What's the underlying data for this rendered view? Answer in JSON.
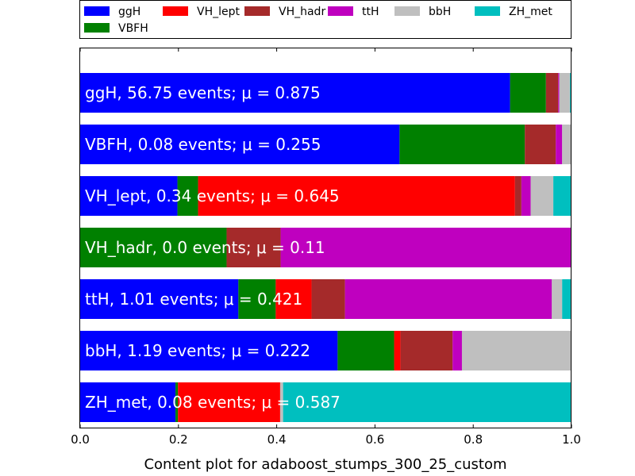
{
  "chart_data": {
    "type": "bar",
    "orientation": "horizontal",
    "stacked": true,
    "xlabel": "Content plot for adaboost_stumps_300_25_custom",
    "xlim": [
      0.0,
      1.0
    ],
    "x_ticks": [
      "0.0",
      "0.2",
      "0.4",
      "0.6",
      "0.8",
      "1.0"
    ],
    "grid": false,
    "legend_position": "top",
    "series": [
      {
        "name": "ggH",
        "color": "#0000ff"
      },
      {
        "name": "VH_lept",
        "color": "#ff0000"
      },
      {
        "name": "VH_hadr",
        "color": "#a52a2a"
      },
      {
        "name": "ttH",
        "color": "#bf00bf"
      },
      {
        "name": "bbH",
        "color": "#bfbfbf"
      },
      {
        "name": "ZH_met",
        "color": "#00bfbf"
      },
      {
        "name": "VBFH",
        "color": "#008000"
      }
    ],
    "rows": [
      {
        "category": "ggH",
        "label": "ggH, 56.75 events; μ = 0.875",
        "segments": {
          "ggH": 0.875,
          "VBFH": 0.073,
          "VH_lept": 0.0,
          "VH_hadr": 0.025,
          "ttH": 0.002,
          "bbH": 0.022,
          "ZH_met": 0.003
        }
      },
      {
        "category": "VBFH",
        "label": "VBFH, 0.08 events; μ = 0.255",
        "segments": {
          "ggH": 0.65,
          "VBFH": 0.255,
          "VH_lept": 0.0,
          "VH_hadr": 0.063,
          "ttH": 0.013,
          "bbH": 0.019,
          "ZH_met": 0.0
        }
      },
      {
        "category": "VH_lept",
        "label": "VH_lept, 0.34 events; μ = 0.645",
        "segments": {
          "ggH": 0.198,
          "VBFH": 0.042,
          "VH_lept": 0.645,
          "VH_hadr": 0.013,
          "ttH": 0.019,
          "bbH": 0.046,
          "ZH_met": 0.037
        }
      },
      {
        "category": "VH_hadr",
        "label": "VH_hadr, 0.0 events; μ = 0.11",
        "segments": {
          "ggH": 0.0,
          "VBFH": 0.298,
          "VH_lept": 0.0,
          "VH_hadr": 0.11,
          "ttH": 0.592,
          "bbH": 0.0,
          "ZH_met": 0.0
        }
      },
      {
        "category": "ttH",
        "label": "ttH, 1.01 events; μ = 0.421",
        "segments": {
          "ggH": 0.322,
          "VBFH": 0.076,
          "VH_lept": 0.073,
          "VH_hadr": 0.068,
          "ttH": 0.421,
          "bbH": 0.021,
          "ZH_met": 0.019
        }
      },
      {
        "category": "bbH",
        "label": "bbH, 1.19 events; μ = 0.222",
        "segments": {
          "ggH": 0.524,
          "VBFH": 0.115,
          "VH_lept": 0.013,
          "VH_hadr": 0.106,
          "ttH": 0.019,
          "bbH": 0.222,
          "ZH_met": 0.001
        }
      },
      {
        "category": "ZH_met",
        "label": "ZH_met, 0.08 events; μ = 0.587",
        "segments": {
          "ggH": 0.194,
          "VBFH": 0.005,
          "VH_lept": 0.208,
          "VH_hadr": 0.0,
          "ttH": 0.0,
          "bbH": 0.006,
          "ZH_met": 0.587
        }
      }
    ],
    "stack_order": [
      "ggH",
      "VBFH",
      "VH_lept",
      "VH_hadr",
      "ttH",
      "bbH",
      "ZH_met"
    ]
  }
}
